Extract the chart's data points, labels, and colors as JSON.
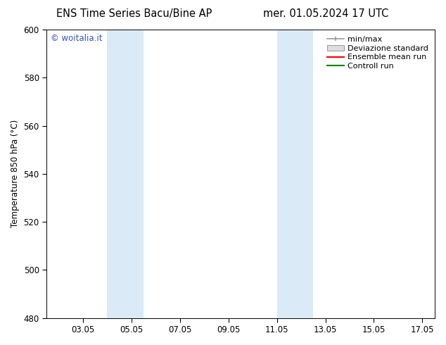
{
  "title_left": "ENS Time Series Bacu/Bine AP",
  "title_right": "mer. 01.05.2024 17 UTC",
  "ylabel": "Temperature 850 hPa (°C)",
  "ylim": [
    480,
    600
  ],
  "yticks": [
    480,
    500,
    520,
    540,
    560,
    580,
    600
  ],
  "xtick_labels": [
    "03.05",
    "05.05",
    "07.05",
    "09.05",
    "11.05",
    "13.05",
    "15.05",
    "17.05"
  ],
  "xtick_positions": [
    3,
    5,
    7,
    9,
    11,
    13,
    15,
    17
  ],
  "xlim": [
    1.5,
    17.5
  ],
  "bg_color": "#ffffff",
  "plot_bg_color": "#ffffff",
  "shaded_bands": [
    {
      "x_start": 4.0,
      "x_end": 5.5,
      "color": "#daeaf7"
    },
    {
      "x_start": 11.0,
      "x_end": 12.5,
      "color": "#daeaf7"
    }
  ],
  "watermark_text": "© woitalia.it",
  "watermark_color": "#3355bb",
  "legend_labels": [
    "min/max",
    "Deviazione standard",
    "Ensemble mean run",
    "Controll run"
  ],
  "minmax_color": "#999999",
  "devstd_facecolor": "#dddddd",
  "devstd_edgecolor": "#999999",
  "ensemble_color": "#ff0000",
  "control_color": "#008000",
  "tick_label_fontsize": 8.5,
  "axis_label_fontsize": 8.5,
  "title_fontsize": 10.5,
  "legend_fontsize": 8
}
